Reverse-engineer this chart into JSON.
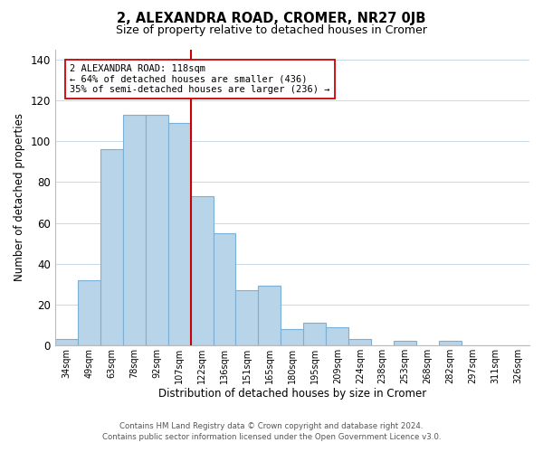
{
  "title": "2, ALEXANDRA ROAD, CROMER, NR27 0JB",
  "subtitle": "Size of property relative to detached houses in Cromer",
  "xlabel": "Distribution of detached houses by size in Cromer",
  "ylabel": "Number of detached properties",
  "bar_labels": [
    "34sqm",
    "49sqm",
    "63sqm",
    "78sqm",
    "92sqm",
    "107sqm",
    "122sqm",
    "136sqm",
    "151sqm",
    "165sqm",
    "180sqm",
    "195sqm",
    "209sqm",
    "224sqm",
    "238sqm",
    "253sqm",
    "268sqm",
    "282sqm",
    "297sqm",
    "311sqm",
    "326sqm"
  ],
  "bar_values": [
    3,
    32,
    96,
    113,
    113,
    109,
    73,
    55,
    27,
    29,
    8,
    11,
    9,
    3,
    0,
    2,
    0,
    2,
    0,
    0,
    0
  ],
  "bar_color": "#b8d4e8",
  "bar_edge_color": "#7bafd4",
  "highlight_line_color": "#cc0000",
  "ylim": [
    0,
    145
  ],
  "yticks": [
    0,
    20,
    40,
    60,
    80,
    100,
    120,
    140
  ],
  "annotation_title": "2 ALEXANDRA ROAD: 118sqm",
  "annotation_line1": "← 64% of detached houses are smaller (436)",
  "annotation_line2": "35% of semi-detached houses are larger (236) →",
  "annotation_box_color": "#ffffff",
  "annotation_box_edge": "#cc0000",
  "footnote1": "Contains HM Land Registry data © Crown copyright and database right 2024.",
  "footnote2": "Contains public sector information licensed under the Open Government Licence v3.0.",
  "background_color": "#ffffff",
  "grid_color": "#c8d8e8"
}
